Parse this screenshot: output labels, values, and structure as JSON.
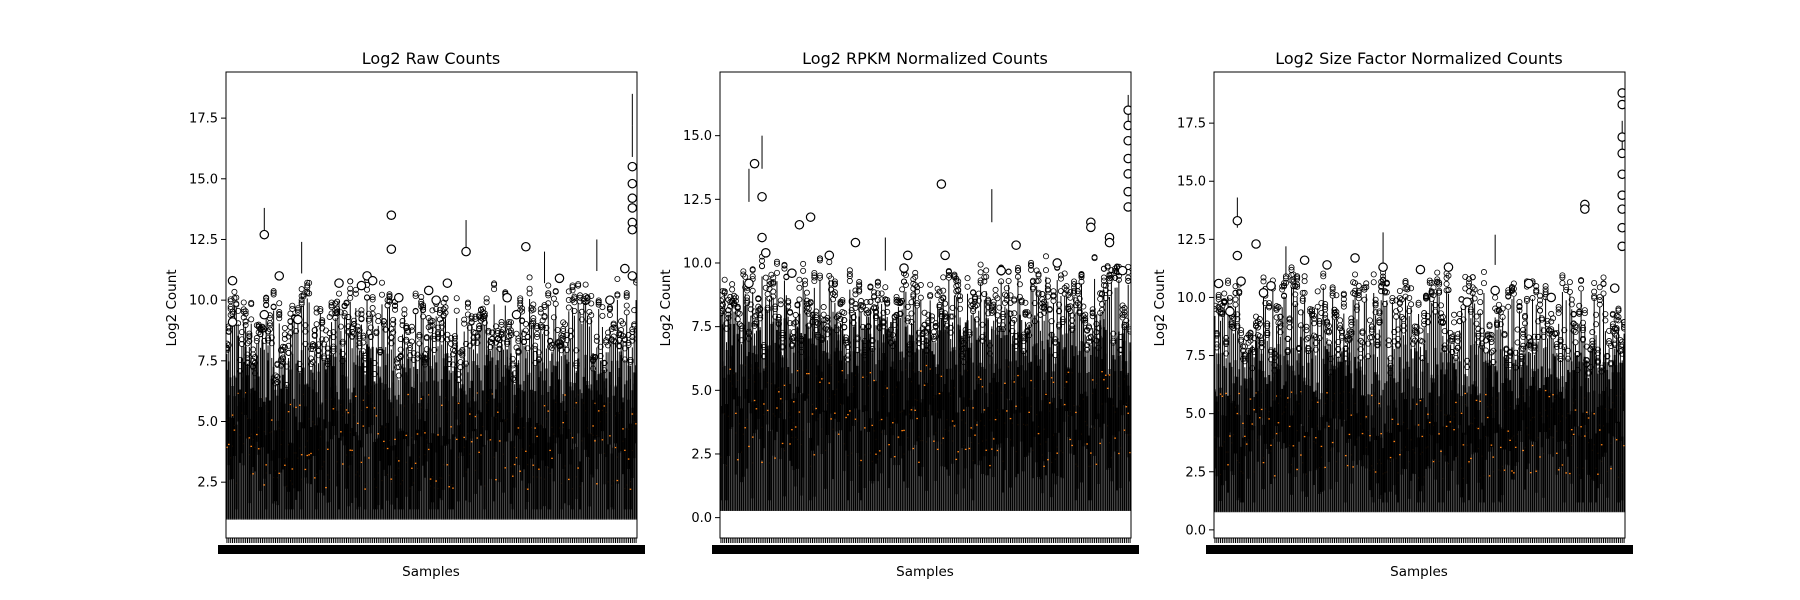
{
  "chart_data": [
    {
      "type": "box",
      "title": "Log2 Raw Counts",
      "xlabel": "Samples",
      "ylabel": "Log2 Count",
      "ylim": [
        0.2,
        19.4
      ],
      "yticks": [
        2.5,
        5.0,
        7.5,
        10.0,
        12.5,
        15.0,
        17.5
      ],
      "ytick_labels": [
        "2.5",
        "5.0",
        "7.5",
        "10.0",
        "12.5",
        "15.0",
        "17.5"
      ],
      "sample_count": 220,
      "whisker_low": 1.0,
      "whisker_high_range": [
        6.5,
        10.2
      ],
      "median_range": [
        2.2,
        6.2
      ],
      "outliers": [
        [
          3,
          10.8
        ],
        [
          3,
          9.1
        ],
        [
          20,
          12.7
        ],
        [
          20,
          9.4
        ],
        [
          28,
          11.0
        ],
        [
          38,
          9.2
        ],
        [
          60,
          10.7
        ],
        [
          72,
          10.6
        ],
        [
          75,
          11.0
        ],
        [
          78,
          10.8
        ],
        [
          88,
          12.1
        ],
        [
          88,
          13.5
        ],
        [
          92,
          10.1
        ],
        [
          108,
          10.4
        ],
        [
          112,
          10.0
        ],
        [
          118,
          10.7
        ],
        [
          128,
          12.0
        ],
        [
          150,
          10.1
        ],
        [
          155,
          9.4
        ],
        [
          160,
          12.2
        ],
        [
          178,
          10.9
        ],
        [
          205,
          10.0
        ],
        [
          213,
          11.3
        ],
        [
          217,
          15.5
        ],
        [
          217,
          14.8
        ],
        [
          217,
          14.2
        ],
        [
          217,
          13.8
        ],
        [
          217,
          13.2
        ],
        [
          217,
          12.9
        ],
        [
          217,
          11.0
        ]
      ],
      "long_whiskers": [
        [
          20,
          13.8
        ],
        [
          40,
          12.4
        ],
        [
          128,
          13.3
        ],
        [
          170,
          12.0
        ],
        [
          198,
          12.5
        ],
        [
          217,
          18.5
        ],
        [
          217,
          17.2
        ]
      ]
    },
    {
      "type": "box",
      "title": "Log2 RPKM Normalized Counts",
      "xlabel": "Samples",
      "ylabel": "Log2 Count",
      "ylim": [
        -0.8,
        17.5
      ],
      "yticks": [
        0.0,
        2.5,
        5.0,
        7.5,
        10.0,
        12.5,
        15.0
      ],
      "ytick_labels": [
        "0.0",
        "2.5",
        "5.0",
        "7.5",
        "10.0",
        "12.5",
        "15.0"
      ],
      "sample_count": 220,
      "whisker_low": 0.3,
      "whisker_high_range": [
        6.0,
        9.5
      ],
      "median_range": [
        2.0,
        6.0
      ],
      "outliers": [
        [
          15,
          9.2
        ],
        [
          18,
          13.9
        ],
        [
          22,
          12.6
        ],
        [
          22,
          11.0
        ],
        [
          24,
          10.4
        ],
        [
          38,
          9.6
        ],
        [
          42,
          11.5
        ],
        [
          48,
          11.8
        ],
        [
          58,
          10.3
        ],
        [
          72,
          10.8
        ],
        [
          98,
          9.8
        ],
        [
          100,
          10.3
        ],
        [
          118,
          13.1
        ],
        [
          120,
          10.3
        ],
        [
          150,
          9.7
        ],
        [
          158,
          10.7
        ],
        [
          180,
          10.0
        ],
        [
          198,
          11.6
        ],
        [
          198,
          11.4
        ],
        [
          208,
          11.0
        ],
        [
          208,
          10.8
        ],
        [
          215,
          9.7
        ],
        [
          218,
          16.0
        ],
        [
          218,
          15.4
        ],
        [
          218,
          14.8
        ],
        [
          218,
          14.1
        ],
        [
          218,
          13.5
        ],
        [
          218,
          12.8
        ],
        [
          218,
          12.2
        ]
      ],
      "long_whiskers": [
        [
          15,
          13.7
        ],
        [
          22,
          15.0
        ],
        [
          88,
          11.0
        ],
        [
          145,
          12.9
        ],
        [
          218,
          16.6
        ]
      ]
    },
    {
      "type": "box",
      "title": "Log2 Size Factor Normalized Counts",
      "xlabel": "Samples",
      "ylabel": "Log2 Count",
      "ylim": [
        -0.35,
        19.7
      ],
      "yticks": [
        0.0,
        2.5,
        5.0,
        7.5,
        10.0,
        12.5,
        15.0,
        17.5
      ],
      "ytick_labels": [
        "0.0",
        "2.5",
        "5.0",
        "7.5",
        "10.0",
        "12.5",
        "15.0",
        "17.5"
      ],
      "sample_count": 220,
      "whisker_low": 0.8,
      "whisker_high_range": [
        6.5,
        10.5
      ],
      "median_range": [
        2.2,
        6.0
      ],
      "outliers": [
        [
          2,
          10.6
        ],
        [
          8,
          9.4
        ],
        [
          12,
          13.3
        ],
        [
          12,
          11.8
        ],
        [
          14,
          10.7
        ],
        [
          22,
          12.3
        ],
        [
          26,
          10.2
        ],
        [
          30,
          10.5
        ],
        [
          48,
          11.6
        ],
        [
          60,
          11.4
        ],
        [
          75,
          11.7
        ],
        [
          90,
          11.3
        ],
        [
          110,
          11.2
        ],
        [
          125,
          11.3
        ],
        [
          135,
          9.8
        ],
        [
          150,
          10.3
        ],
        [
          168,
          10.6
        ],
        [
          180,
          10.0
        ],
        [
          198,
          14.0
        ],
        [
          198,
          13.8
        ],
        [
          214,
          10.4
        ],
        [
          218,
          18.8
        ],
        [
          218,
          18.3
        ],
        [
          218,
          16.9
        ],
        [
          218,
          16.2
        ],
        [
          218,
          15.3
        ],
        [
          218,
          14.4
        ],
        [
          218,
          13.8
        ],
        [
          218,
          13.0
        ],
        [
          218,
          12.2
        ]
      ],
      "long_whiskers": [
        [
          12,
          14.3
        ],
        [
          38,
          12.2
        ],
        [
          90,
          12.8
        ],
        [
          150,
          12.7
        ],
        [
          218,
          17.6
        ]
      ]
    }
  ],
  "layout_colors": {
    "box": "#000000",
    "median": "#ff7f0e",
    "background": "#ffffff"
  }
}
